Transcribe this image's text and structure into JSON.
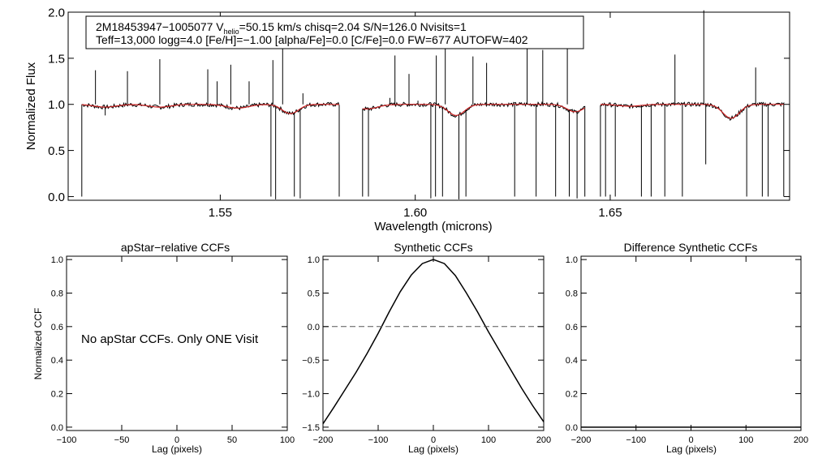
{
  "chart_data": [
    {
      "type": "line",
      "id": "spectrum",
      "xlabel": "Wavelength (microns)",
      "ylabel": "Normalized Flux",
      "xlim": [
        1.511,
        1.696
      ],
      "ylim": [
        -0.04,
        2.0
      ],
      "xticks": [
        1.55,
        1.6,
        1.65
      ],
      "xtick_labels": [
        "1.55",
        "1.60",
        "1.65"
      ],
      "yticks": [
        0.0,
        0.5,
        1.0,
        1.5,
        2.0
      ],
      "ytick_labels": [
        "0.0",
        "0.5",
        "1.0",
        "1.5",
        "2.0"
      ],
      "info": {
        "star_prefix": "2M18453947−1005077  V",
        "vhelio_sub": "helio",
        "vhelio_rest": "=50.15 km/s  chisq=2.04  S/N=126.0  Nvisits=1",
        "line2": "Teff=13,000 logg=4.0 [Fe/H]=−1.00 [alpha/Fe]=0.0 [C/Fe]=0.0 FW=677 AUTOFW=402"
      },
      "detector_ranges": [
        [
          1.5145,
          1.5805
        ],
        [
          1.5865,
          1.6435
        ],
        [
          1.6475,
          1.6945
        ]
      ],
      "series": [
        {
          "name": "observed",
          "color": "#000000",
          "continuum": 1.0
        },
        {
          "name": "model",
          "color": "#cc2222",
          "continuum": 1.0
        }
      ],
      "broad_features": [
        {
          "center": 1.5205,
          "depth": 0.03,
          "width": 0.004
        },
        {
          "center": 1.5345,
          "depth": 0.03,
          "width": 0.004
        },
        {
          "center": 1.5545,
          "depth": 0.04,
          "width": 0.004
        },
        {
          "center": 1.568,
          "depth": 0.1,
          "width": 0.003
        },
        {
          "center": 1.5875,
          "depth": 0.05,
          "width": 0.004
        },
        {
          "center": 1.6105,
          "depth": 0.12,
          "width": 0.003
        },
        {
          "center": 1.641,
          "depth": 0.08,
          "width": 0.003
        },
        {
          "center": 1.655,
          "depth": 0.02,
          "width": 0.004
        },
        {
          "center": 1.681,
          "depth": 0.15,
          "width": 0.003
        }
      ],
      "spikes_up": [
        {
          "x": 1.518,
          "h": 1.37
        },
        {
          "x": 1.5262,
          "h": 1.36
        },
        {
          "x": 1.5345,
          "h": 1.49
        },
        {
          "x": 1.5468,
          "h": 1.38
        },
        {
          "x": 1.5492,
          "h": 1.25
        },
        {
          "x": 1.5527,
          "h": 1.43
        },
        {
          "x": 1.5574,
          "h": 1.25
        },
        {
          "x": 1.5635,
          "h": 1.48
        },
        {
          "x": 1.566,
          "h": 1.65
        },
        {
          "x": 1.5712,
          "h": 1.12
        },
        {
          "x": 1.5935,
          "h": 1.07
        },
        {
          "x": 1.5948,
          "h": 1.53
        },
        {
          "x": 1.5984,
          "h": 1.33
        },
        {
          "x": 1.6007,
          "h": 1.04
        },
        {
          "x": 1.6054,
          "h": 1.53
        },
        {
          "x": 1.6077,
          "h": 1.62
        },
        {
          "x": 1.6148,
          "h": 1.52
        },
        {
          "x": 1.6183,
          "h": 1.45
        },
        {
          "x": 1.6287,
          "h": 1.7
        },
        {
          "x": 1.6327,
          "h": 1.59
        },
        {
          "x": 1.639,
          "h": 1.68
        },
        {
          "x": 1.6666,
          "h": 1.54
        },
        {
          "x": 1.674,
          "h": 2.02
        },
        {
          "x": 1.6873,
          "h": 1.4
        }
      ],
      "spikes_down": [
        {
          "x": 1.5205,
          "h": 0.88
        },
        {
          "x": 1.563,
          "h": 0.0
        },
        {
          "x": 1.5642,
          "h": -0.03
        },
        {
          "x": 1.569,
          "h": 0.0
        },
        {
          "x": 1.5705,
          "h": -0.02
        },
        {
          "x": 1.588,
          "h": 0.0
        },
        {
          "x": 1.604,
          "h": -0.02
        },
        {
          "x": 1.6052,
          "h": 0.0
        },
        {
          "x": 1.607,
          "h": 0.0
        },
        {
          "x": 1.6112,
          "h": -0.03
        },
        {
          "x": 1.613,
          "h": 0.0
        },
        {
          "x": 1.6255,
          "h": 0.0
        },
        {
          "x": 1.631,
          "h": 0.0
        },
        {
          "x": 1.636,
          "h": 0.0
        },
        {
          "x": 1.6395,
          "h": 0.0
        },
        {
          "x": 1.6415,
          "h": -0.02
        },
        {
          "x": 1.6488,
          "h": 0.0
        },
        {
          "x": 1.6513,
          "h": 0.0
        },
        {
          "x": 1.658,
          "h": 0.0
        },
        {
          "x": 1.6605,
          "h": 0.0
        },
        {
          "x": 1.664,
          "h": 0.0
        },
        {
          "x": 1.6685,
          "h": 0.0
        },
        {
          "x": 1.6745,
          "h": 0.35
        },
        {
          "x": 1.685,
          "h": 0.0
        },
        {
          "x": 1.689,
          "h": 0.0
        },
        {
          "x": 1.6905,
          "h": 0.0
        }
      ]
    },
    {
      "type": "line",
      "id": "apstar_ccf",
      "title": "apStar−relative CCFs",
      "xlabel": "Lag (pixels)",
      "ylabel": "Normalized CCF",
      "xlim": [
        -100,
        100
      ],
      "ylim": [
        -0.02,
        1.02
      ],
      "xticks": [
        -100,
        -50,
        0,
        50,
        100
      ],
      "xtick_labels": [
        "−100",
        "−50",
        "0",
        "50",
        "100"
      ],
      "yticks": [
        0.0,
        0.2,
        0.4,
        0.6,
        0.8,
        1.0
      ],
      "ytick_labels": [
        "0.0",
        "0.2",
        "0.4",
        "0.6",
        "0.8",
        "1.0"
      ],
      "annotation": "No apStar CCFs.  Only ONE Visit",
      "series": []
    },
    {
      "type": "line",
      "id": "synthetic_ccf",
      "title": "Synthetic CCFs",
      "xlabel": "Lag (pixels)",
      "xlim": [
        -200,
        200
      ],
      "ylim": [
        -1.55,
        1.05
      ],
      "xticks": [
        -200,
        -100,
        0,
        100,
        200
      ],
      "xtick_labels": [
        "−200",
        "−100",
        "0",
        "100",
        "200"
      ],
      "yticks": [
        -1.5,
        -1.0,
        -0.5,
        0.0,
        0.5,
        1.0
      ],
      "ytick_labels": [
        "−1.5",
        "−1.0",
        "−0.5",
        "0.0",
        "0.5",
        "1.0"
      ],
      "series": [
        {
          "name": "synthetic ccf",
          "color": "#000000",
          "x": [
            -200,
            -180,
            -160,
            -140,
            -120,
            -100,
            -80,
            -60,
            -40,
            -20,
            0,
            20,
            40,
            60,
            80,
            100,
            120,
            140,
            160,
            180,
            200
          ],
          "y": [
            -1.45,
            -1.2,
            -0.94,
            -0.68,
            -0.4,
            -0.1,
            0.22,
            0.52,
            0.77,
            0.94,
            1.0,
            0.94,
            0.76,
            0.5,
            0.22,
            -0.08,
            -0.36,
            -0.64,
            -0.92,
            -1.18,
            -1.42
          ]
        },
        {
          "name": "zero line",
          "color": "#555555",
          "dashed": true,
          "x": [
            -200,
            200
          ],
          "y": [
            0,
            0
          ]
        }
      ]
    },
    {
      "type": "line",
      "id": "difference_ccf",
      "title": "Difference Synthetic CCFs",
      "xlabel": "Lag (pixels)",
      "xlim": [
        -200,
        200
      ],
      "ylim": [
        -0.02,
        1.02
      ],
      "xticks": [
        -200,
        -100,
        0,
        100,
        200
      ],
      "xtick_labels": [
        "−200",
        "−100",
        "0",
        "100",
        "200"
      ],
      "yticks": [
        0.0,
        0.2,
        0.4,
        0.6,
        0.8,
        1.0
      ],
      "ytick_labels": [
        "0.0",
        "0.2",
        "0.4",
        "0.6",
        "0.8",
        "1.0"
      ],
      "series": [
        {
          "name": "difference",
          "color": "#000000",
          "x": [
            -200,
            200
          ],
          "y": [
            0,
            0
          ]
        }
      ]
    }
  ]
}
